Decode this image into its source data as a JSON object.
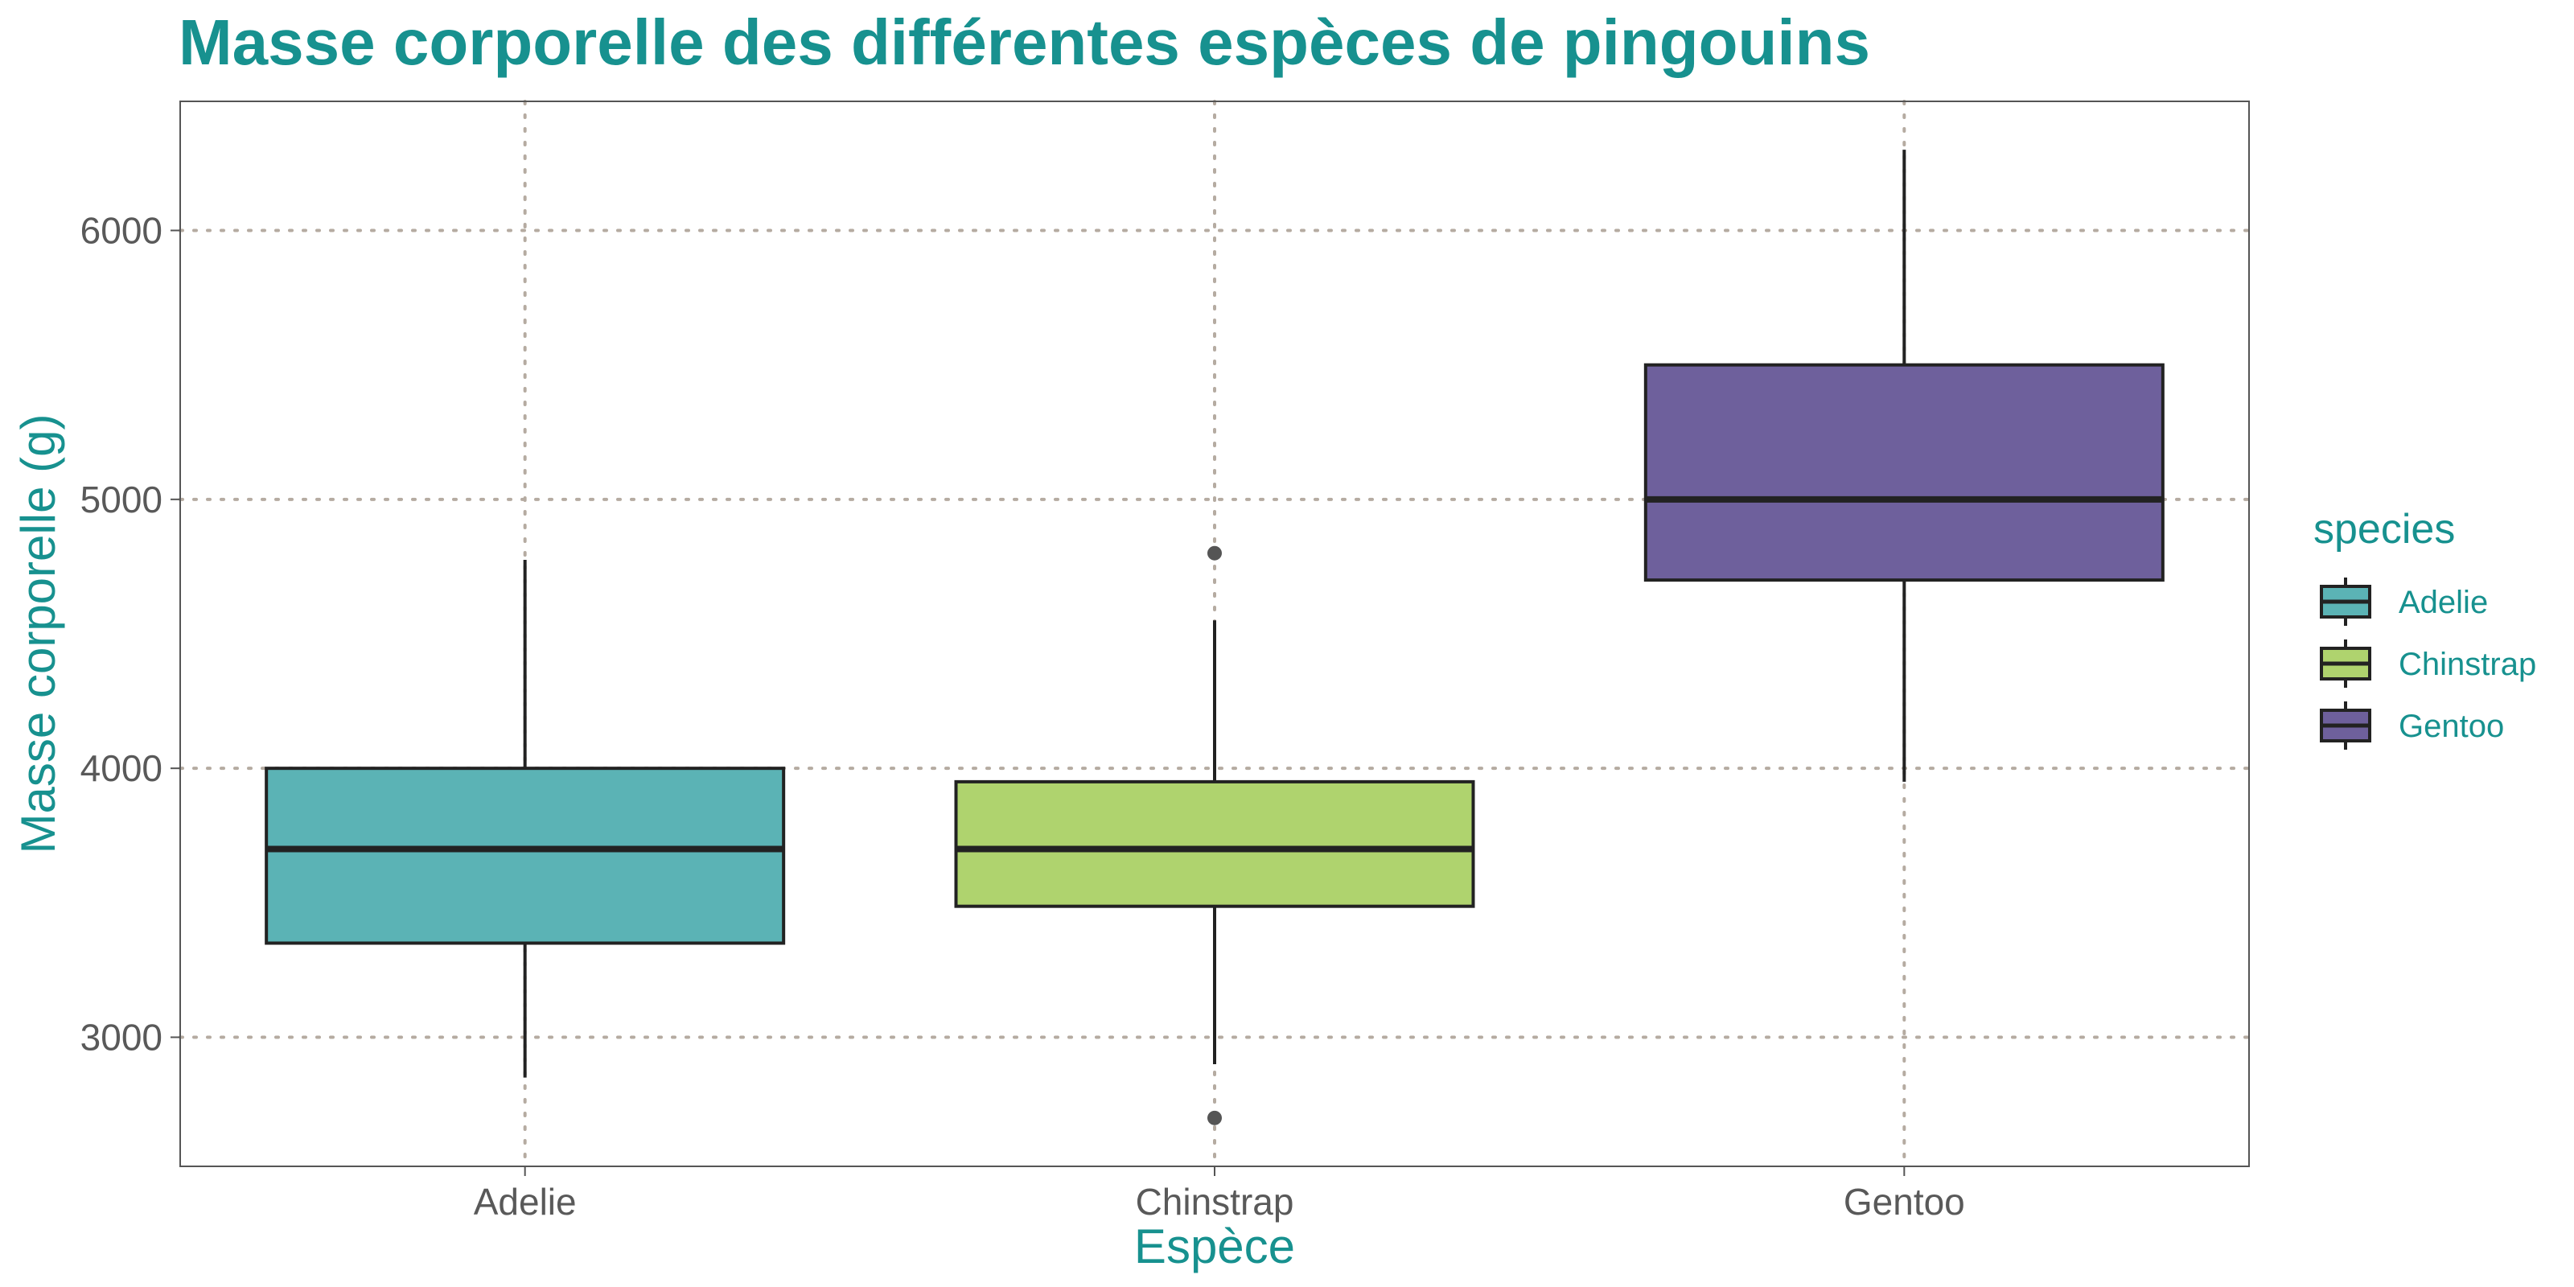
{
  "chart_data": {
    "type": "boxplot",
    "title": "Masse corporelle des différentes espèces de pingouins",
    "xlabel": "Espèce",
    "ylabel": "Masse corporelle (g)",
    "ylim": [
      2520,
      6480
    ],
    "yticks": [
      3000,
      4000,
      5000,
      6000
    ],
    "categories": [
      "Adelie",
      "Chinstrap",
      "Gentoo"
    ],
    "boxes": [
      {
        "name": "Adelie",
        "whisker_low": 2850,
        "q1": 3350,
        "median": 3700,
        "q3": 4000,
        "whisker_high": 4775,
        "outliers": [],
        "color": "#5bb3b5"
      },
      {
        "name": "Chinstrap",
        "whisker_low": 2900,
        "q1": 3487,
        "median": 3700,
        "q3": 3950,
        "whisker_high": 4550,
        "outliers": [
          2700,
          4800
        ],
        "color": "#afd36e"
      },
      {
        "name": "Gentoo",
        "whisker_low": 3950,
        "q1": 4700,
        "median": 5000,
        "q3": 5500,
        "whisker_high": 6300,
        "outliers": [],
        "color": "#6e609c"
      }
    ],
    "grid": "dotted",
    "legend": {
      "title": "species",
      "position": "right",
      "entries": [
        "Adelie",
        "Chinstrap",
        "Gentoo"
      ]
    }
  },
  "colors": {
    "accent": "#17918f",
    "grid": "#b5aba1",
    "box_outline": "#222222",
    "outlier": "#555555"
  }
}
